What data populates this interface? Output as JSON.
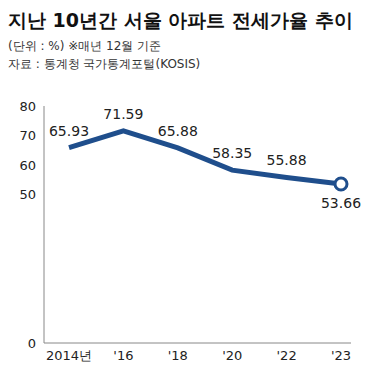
{
  "chart_data": {
    "type": "line",
    "title": "지난 10년간 서울 아파트 전세가율 추이",
    "subtitle": "(단위 : %)  ※매년 12월 기준",
    "annotations": [
      "자료 : 통계청 국가통계포털(KOSIS)"
    ],
    "categories": [
      "2014년",
      "'16",
      "'18",
      "'20",
      "'22",
      "'23"
    ],
    "values": [
      65.93,
      71.59,
      65.88,
      58.35,
      55.88,
      53.66
    ],
    "color": "#1f4e8c",
    "ylim": [
      0,
      80
    ],
    "yticks": [
      0,
      50,
      60,
      70,
      80
    ],
    "grid": false,
    "data_labels": true
  }
}
